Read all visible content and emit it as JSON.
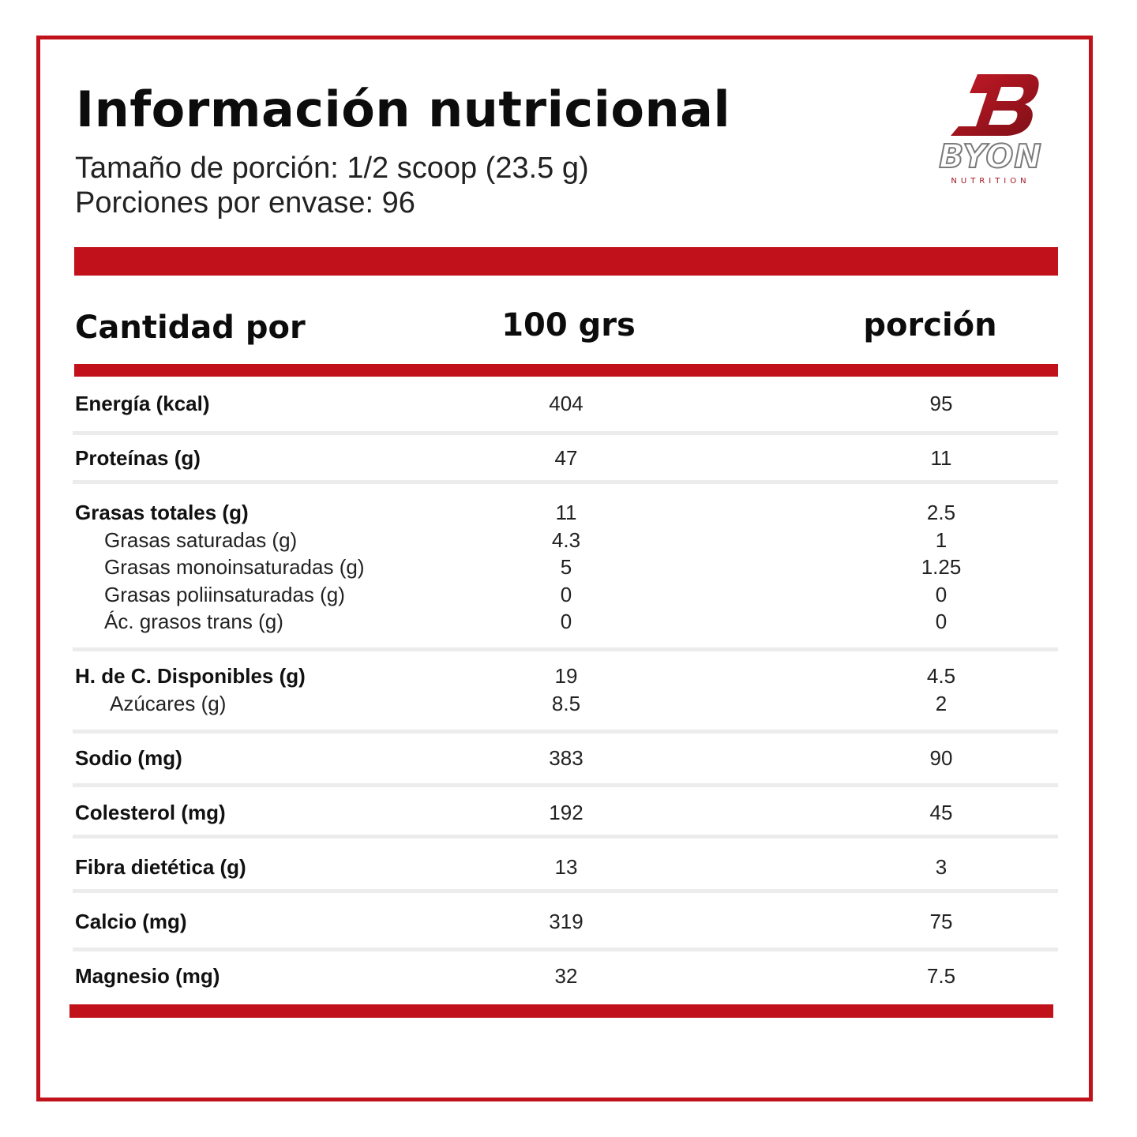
{
  "header": {
    "title": "Información nutricional",
    "serving_size": "Tamaño de porción: 1/2 scoop (23.5 g)",
    "servings_per_container": "Porciones por envase: 96"
  },
  "logo": {
    "brand": "BYON",
    "tagline": "NUTRITION",
    "mark_color": "#a01620"
  },
  "table": {
    "columns": {
      "label": "Cantidad por",
      "per_100": "100 grs",
      "per_serving": "porción"
    },
    "energia": {
      "label": "Energía (kcal)",
      "per_100": "404",
      "per_serving": "95"
    },
    "proteinas": {
      "label": "Proteínas (g)",
      "per_100": "47",
      "per_serving": "11"
    },
    "grasas_totales": {
      "label": "Grasas totales (g)",
      "per_100": "11",
      "per_serving": "2.5"
    },
    "grasas_saturadas": {
      "label": "Grasas saturadas (g)",
      "per_100": "4.3",
      "per_serving": "1"
    },
    "grasas_mono": {
      "label": "Grasas monoinsaturadas (g)",
      "per_100": "5",
      "per_serving": "1.25"
    },
    "grasas_poli": {
      "label": "Grasas poliinsaturadas (g)",
      "per_100": "0",
      "per_serving": "0"
    },
    "trans": {
      "label": "Ác. grasos trans (g)",
      "per_100": "0",
      "per_serving": "0"
    },
    "hdc": {
      "label": "H. de C. Disponibles (g)",
      "per_100": "19",
      "per_serving": "4.5"
    },
    "azucares": {
      "label": "Azúcares (g)",
      "per_100": "8.5",
      "per_serving": "2"
    },
    "sodio": {
      "label": "Sodio (mg)",
      "per_100": "383",
      "per_serving": "90"
    },
    "colesterol": {
      "label": "Colesterol (mg)",
      "per_100": "192",
      "per_serving": "45"
    },
    "fibra": {
      "label": "Fibra dietética (g)",
      "per_100": "13",
      "per_serving": "3"
    },
    "calcio": {
      "label": "Calcio (mg)",
      "per_100": "319",
      "per_serving": "75"
    },
    "magnesio": {
      "label": "Magnesio (mg)",
      "per_100": "32",
      "per_serving": "7.5"
    }
  },
  "colors": {
    "accent": "#c1121c",
    "separator": "#ececec",
    "text": "#111111"
  }
}
